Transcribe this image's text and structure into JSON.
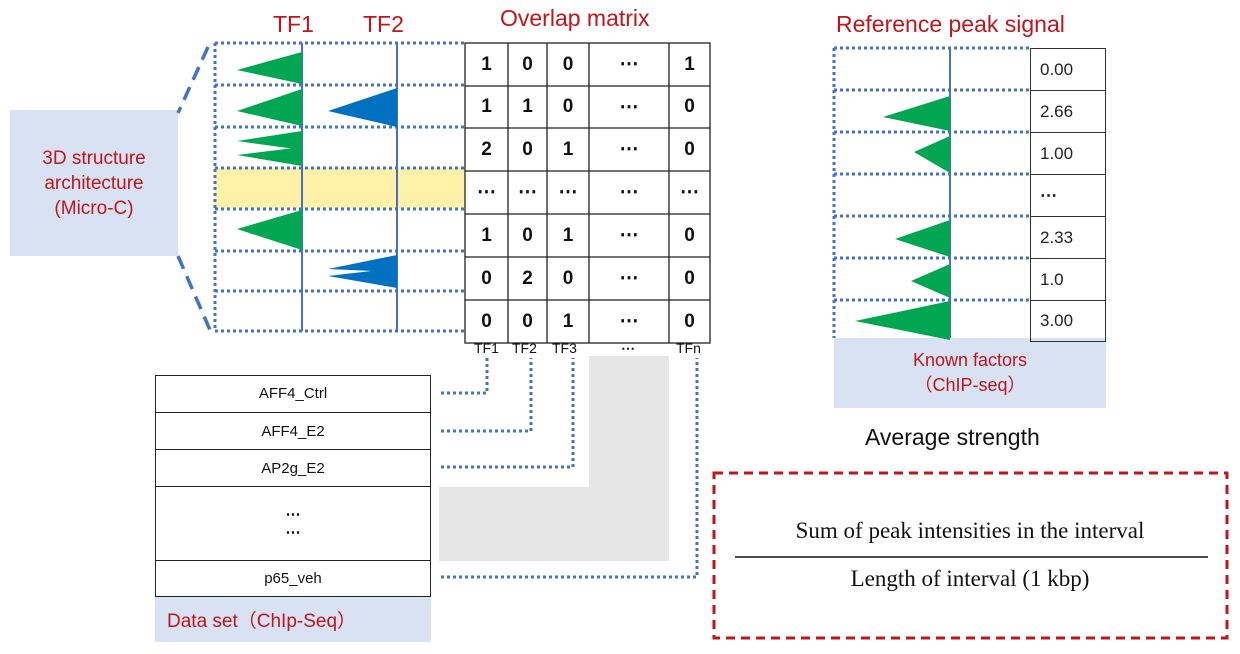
{
  "tf_headers": {
    "tf1": "TF1",
    "tf2": "TF2"
  },
  "overlap_title": "Overlap matrix",
  "reference_title": "Reference peak signal",
  "structure_box": {
    "line1": "3D structure",
    "line2": "architecture",
    "line3": "(Micro-C)"
  },
  "matrix": {
    "rows": [
      [
        "1",
        "0",
        "0",
        "⋯",
        "1"
      ],
      [
        "1",
        "1",
        "0",
        "⋯",
        "0"
      ],
      [
        "2",
        "0",
        "1",
        "⋯",
        "0"
      ],
      [
        "⋯",
        "⋯",
        "⋯",
        "⋯",
        "⋯"
      ],
      [
        "1",
        "0",
        "1",
        "⋯",
        "0"
      ],
      [
        "0",
        "2",
        "0",
        "⋯",
        "0"
      ],
      [
        "0",
        "0",
        "1",
        "⋯",
        "0"
      ]
    ],
    "col_labels": [
      "TF1",
      "TF2",
      "TF3",
      "⋯",
      "TFn"
    ]
  },
  "reference_values": [
    "0.00",
    "2.66",
    "1.00",
    "⋯",
    "2.33",
    "1.0",
    "3.00"
  ],
  "known_factors": {
    "line1": "Known factors",
    "line2": "（ChIP-seq）"
  },
  "average_strength": "Average strength",
  "dataset": {
    "rows": [
      "AFF4_Ctrl",
      "AFF4_E2",
      "AP2g_E2",
      "⋯",
      "⋯",
      "p65_veh"
    ],
    "label": "Data set（ChIp-Seq）"
  },
  "formula": {
    "numerator": "Sum of peak intensities in the interval",
    "denominator": "Length of interval (1 kbp)"
  },
  "colors": {
    "red": "#c0161b",
    "blue_dot": "#4472c4",
    "green_peak": "#00a651",
    "blue_peak": "#0070c0",
    "highlight": "#fff2a8",
    "label_bg": "#d9e2f3"
  }
}
